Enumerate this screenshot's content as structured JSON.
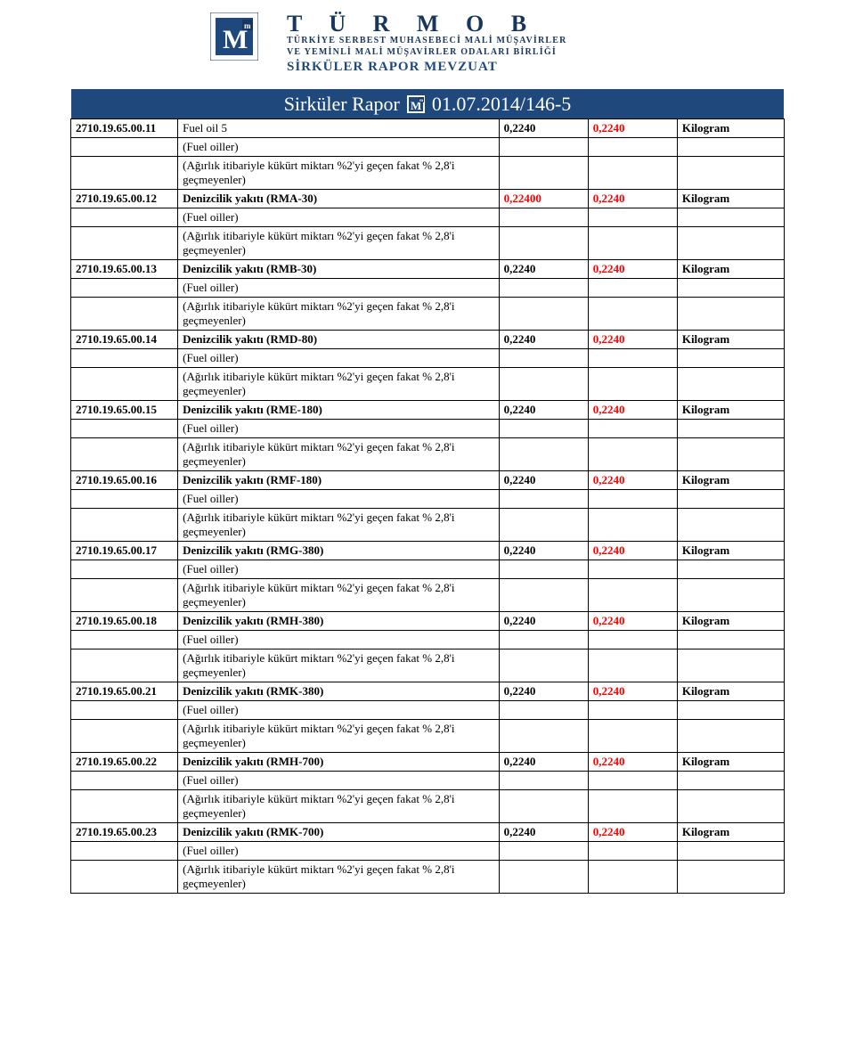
{
  "colors": {
    "brand_dark": "#17365d",
    "brand_mid": "#1f497d",
    "red": "#ff0000",
    "background": "#ffffff",
    "text": "#000000",
    "border": "#000000"
  },
  "header": {
    "org_name": "T Ü R M O B",
    "org_sub1": "TÜRKİYE SERBEST MUHASEBECİ MALİ MÜŞAVİRLER",
    "org_sub2": "VE YEMİNLİ MALİ MÜŞAVİRLER ODALARI BİRLİĞİ",
    "app": "SİRKÜLER RAPOR MEVZUAT"
  },
  "title": {
    "left": "Sirküler Rapor",
    "right": "01.07.2014/146-5"
  },
  "common": {
    "fuel_oiller": "(Fuel oiller)",
    "note_std": "(Ağırlık itibariyle kükürt miktarı %2'yi geçen fakat % 2,8'i geçmeyenler)",
    "note_spaced": "(Ağırlık itibariyle kükürt miktarı %2'yi geçen fakat % 2,8'i   geçmeyenler)"
  },
  "rows": [
    {
      "code": "2710.19.65.00.11",
      "desc": "Fuel oil 5",
      "v1": "0,2240",
      "v2": "0,2240",
      "unit": "Kilogram",
      "desc_bold": false,
      "note": "std",
      "v1_red": false
    },
    {
      "code": "2710.19.65.00.12",
      "desc": "Denizcilik yakıtı (RMA-30)",
      "v1": "0,22400",
      "v2": "0,2240",
      "unit": "Kilogram",
      "desc_bold": true,
      "note": "std",
      "v1_red": true
    },
    {
      "code": "2710.19.65.00.13",
      "desc": "Denizcilik yakıtı (RMB-30)",
      "v1": "0,2240",
      "v2": "0,2240",
      "unit": "Kilogram",
      "desc_bold": true,
      "note": "std",
      "v1_red": false
    },
    {
      "code": "2710.19.65.00.14",
      "desc": "Denizcilik yakıtı (RMD-80)",
      "v1": "0,2240",
      "v2": "0,2240",
      "unit": "Kilogram",
      "desc_bold": true,
      "note": "std",
      "v1_red": false
    },
    {
      "code": "2710.19.65.00.15",
      "desc": "Denizcilik yakıtı (RME-180)",
      "v1": "0,2240",
      "v2": "0,2240",
      "unit": "Kilogram",
      "desc_bold": true,
      "note": "std",
      "v1_red": false
    },
    {
      "code": "2710.19.65.00.16",
      "desc": "Denizcilik yakıtı (RMF-180)",
      "v1": "0,2240",
      "v2": "0,2240",
      "unit": "Kilogram",
      "desc_bold": true,
      "note": "std",
      "v1_red": false
    },
    {
      "code": "2710.19.65.00.17",
      "desc": "Denizcilik yakıtı (RMG-380)",
      "v1": "0,2240",
      "v2": "0,2240",
      "unit": "Kilogram",
      "desc_bold": true,
      "note": "std",
      "v1_red": false
    },
    {
      "code": "2710.19.65.00.18",
      "desc": "Denizcilik yakıtı (RMH-380)",
      "v1": "0,2240",
      "v2": "0,2240",
      "unit": "Kilogram",
      "desc_bold": true,
      "note": "std",
      "v1_red": false
    },
    {
      "code": "2710.19.65.00.21",
      "desc": "Denizcilik yakıtı (RMK-380)",
      "v1": "0,2240",
      "v2": "0,2240",
      "unit": "Kilogram",
      "desc_bold": true,
      "note": "std",
      "v1_red": false
    },
    {
      "code": "2710.19.65.00.22",
      "desc": "Denizcilik yakıtı (RMH-700)",
      "v1": "0,2240",
      "v2": "0,2240",
      "unit": "Kilogram",
      "desc_bold": true,
      "note": "spaced",
      "v1_red": false
    },
    {
      "code": "2710.19.65.00.23",
      "desc": "Denizcilik yakıtı (RMK-700)",
      "v1": "0,2240",
      "v2": "0,2240",
      "unit": "Kilogram",
      "desc_bold": true,
      "note": "std",
      "v1_red": false
    }
  ]
}
